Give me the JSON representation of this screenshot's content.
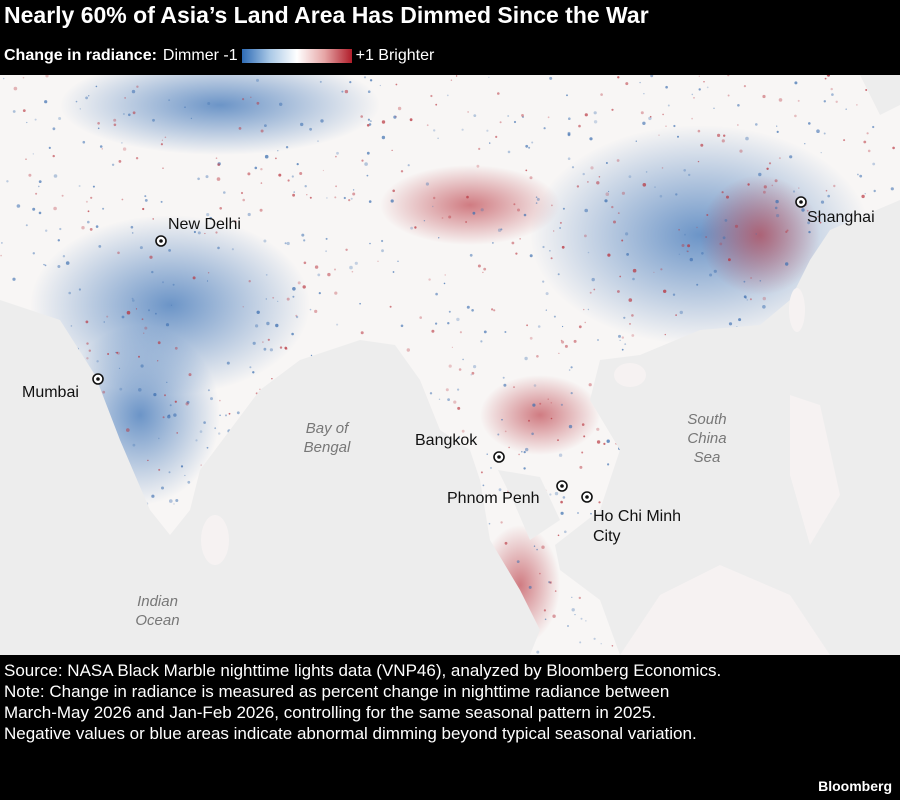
{
  "header": {
    "title": "Nearly 60% of Asia’s Land Area Has Dimmed Since the War"
  },
  "legend": {
    "label": "Change in radiance:",
    "low": "Dimmer -1",
    "high": "+1 Brighter"
  },
  "places": [
    {
      "label": "New Delhi"
    },
    {
      "label": "Mumbai"
    },
    {
      "label": "Bangkok"
    },
    {
      "label": "Phnom Penh"
    },
    {
      "label": "Ho Chi Minh City"
    },
    {
      "label": "Shanghai"
    }
  ],
  "seas": [
    {
      "label": "Bay of Bengal"
    },
    {
      "label": "South China Sea"
    },
    {
      "label": "Indian Ocean"
    }
  ],
  "footer": {
    "source": "Source: NASA Black Marble nighttime lights data (VNP46), analyzed by Bloomberg Economics.",
    "note": "Note: Change in radiance is measured as percent change in nighttime radiance between March-May 2026 and Jan-Feb 2026, controlling for the same seasonal pattern in 2025. Negative values or blue areas indicate abnormal dimming beyond typical seasonal variation.",
    "brand": "Bloomberg"
  }
}
